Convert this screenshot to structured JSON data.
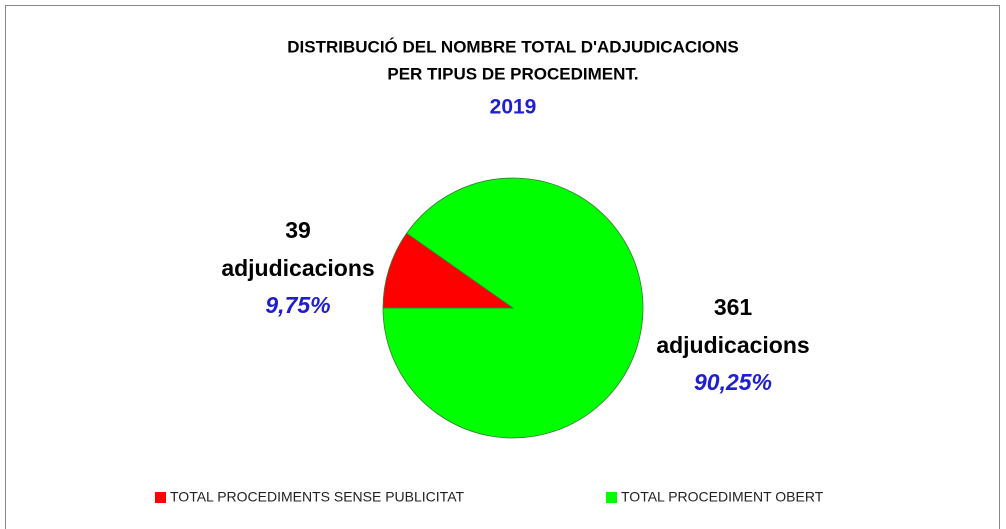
{
  "chart_data": {
    "type": "pie",
    "title": [
      "DISTRIBUCIÓ DEL NOMBRE TOTAL D'ADJUDICACIONS",
      "PER TIPUS DE PROCEDIMENT."
    ],
    "subtitle": "2019",
    "categories": [
      "TOTAL PROCEDIMENTS SENSE PUBLICITAT",
      "TOTAL PROCEDIMENT OBERT"
    ],
    "values": [
      39,
      361
    ],
    "value_unit": "adjudicacions",
    "percentages": [
      {
        "value": 9.75,
        "label": "9,75%"
      },
      {
        "value": 90.25,
        "label": "90,25%"
      }
    ],
    "colors": [
      "#ff0000",
      "#00ff00"
    ],
    "start_angle": 270,
    "legend": "bottom"
  }
}
